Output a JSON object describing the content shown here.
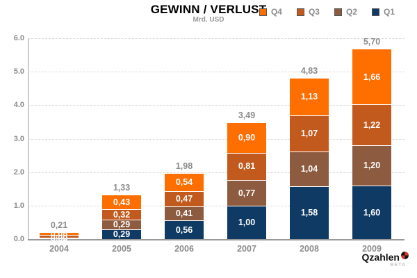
{
  "title": "GEWINN / VERLUST",
  "subtitle": "Mrd. USD",
  "branding": {
    "name": "Qzahlen",
    "beta": "BETA"
  },
  "legend": [
    {
      "label": "Q4",
      "color": "#ff6f00"
    },
    {
      "label": "Q3",
      "color": "#c35a1d"
    },
    {
      "label": "Q2",
      "color": "#8d5c40"
    },
    {
      "label": "Q1",
      "color": "#0f3a64"
    }
  ],
  "chart_data": {
    "type": "bar",
    "stacked": true,
    "title": "GEWINN / VERLUST",
    "subtitle": "Mrd. USD",
    "unit": "Mrd. USD",
    "categories": [
      "2004",
      "2005",
      "2006",
      "2007",
      "2008",
      "2009"
    ],
    "totals": [
      "0,21",
      "1,33",
      "1,98",
      "3,49",
      "4,83",
      "5,70"
    ],
    "total_values": [
      0.21,
      1.33,
      1.98,
      3.49,
      4.83,
      5.7
    ],
    "series": [
      {
        "name": "Q1",
        "color": "#0f3a64",
        "values": [
          0.02,
          0.29,
          0.56,
          1.0,
          1.58,
          1.6
        ],
        "labels": [
          "0,02",
          "0,29",
          "0,56",
          "1,00",
          "1,58",
          "1,60"
        ]
      },
      {
        "name": "Q2",
        "color": "#8d5c40",
        "values": [
          0.03,
          0.29,
          0.41,
          0.77,
          1.04,
          1.2
        ],
        "labels": [
          "0,03",
          "0,29",
          "0,41",
          "0,77",
          "1,04",
          "1,20"
        ]
      },
      {
        "name": "Q3",
        "color": "#c35a1d",
        "values": [
          0.08,
          0.32,
          0.47,
          0.81,
          1.07,
          1.22
        ],
        "labels": [
          "0,08",
          "0,32",
          "0,47",
          "0,81",
          "1,07",
          "1,22"
        ]
      },
      {
        "name": "Q4",
        "color": "#ff6f00",
        "values": [
          0.08,
          0.43,
          0.54,
          0.9,
          1.13,
          1.66
        ],
        "labels": [
          "0,08",
          "0,43",
          "0,54",
          "0,90",
          "1,13",
          "1,66"
        ]
      }
    ],
    "y_axis": {
      "min": 0.0,
      "max": 6.0,
      "step": 1.0,
      "tick_labels": [
        "0.0",
        "1.0",
        "2.0",
        "3.0",
        "4.0",
        "5.0",
        "6.0"
      ]
    },
    "grid": "horizontal-dashed",
    "legend_position": "top-right"
  }
}
